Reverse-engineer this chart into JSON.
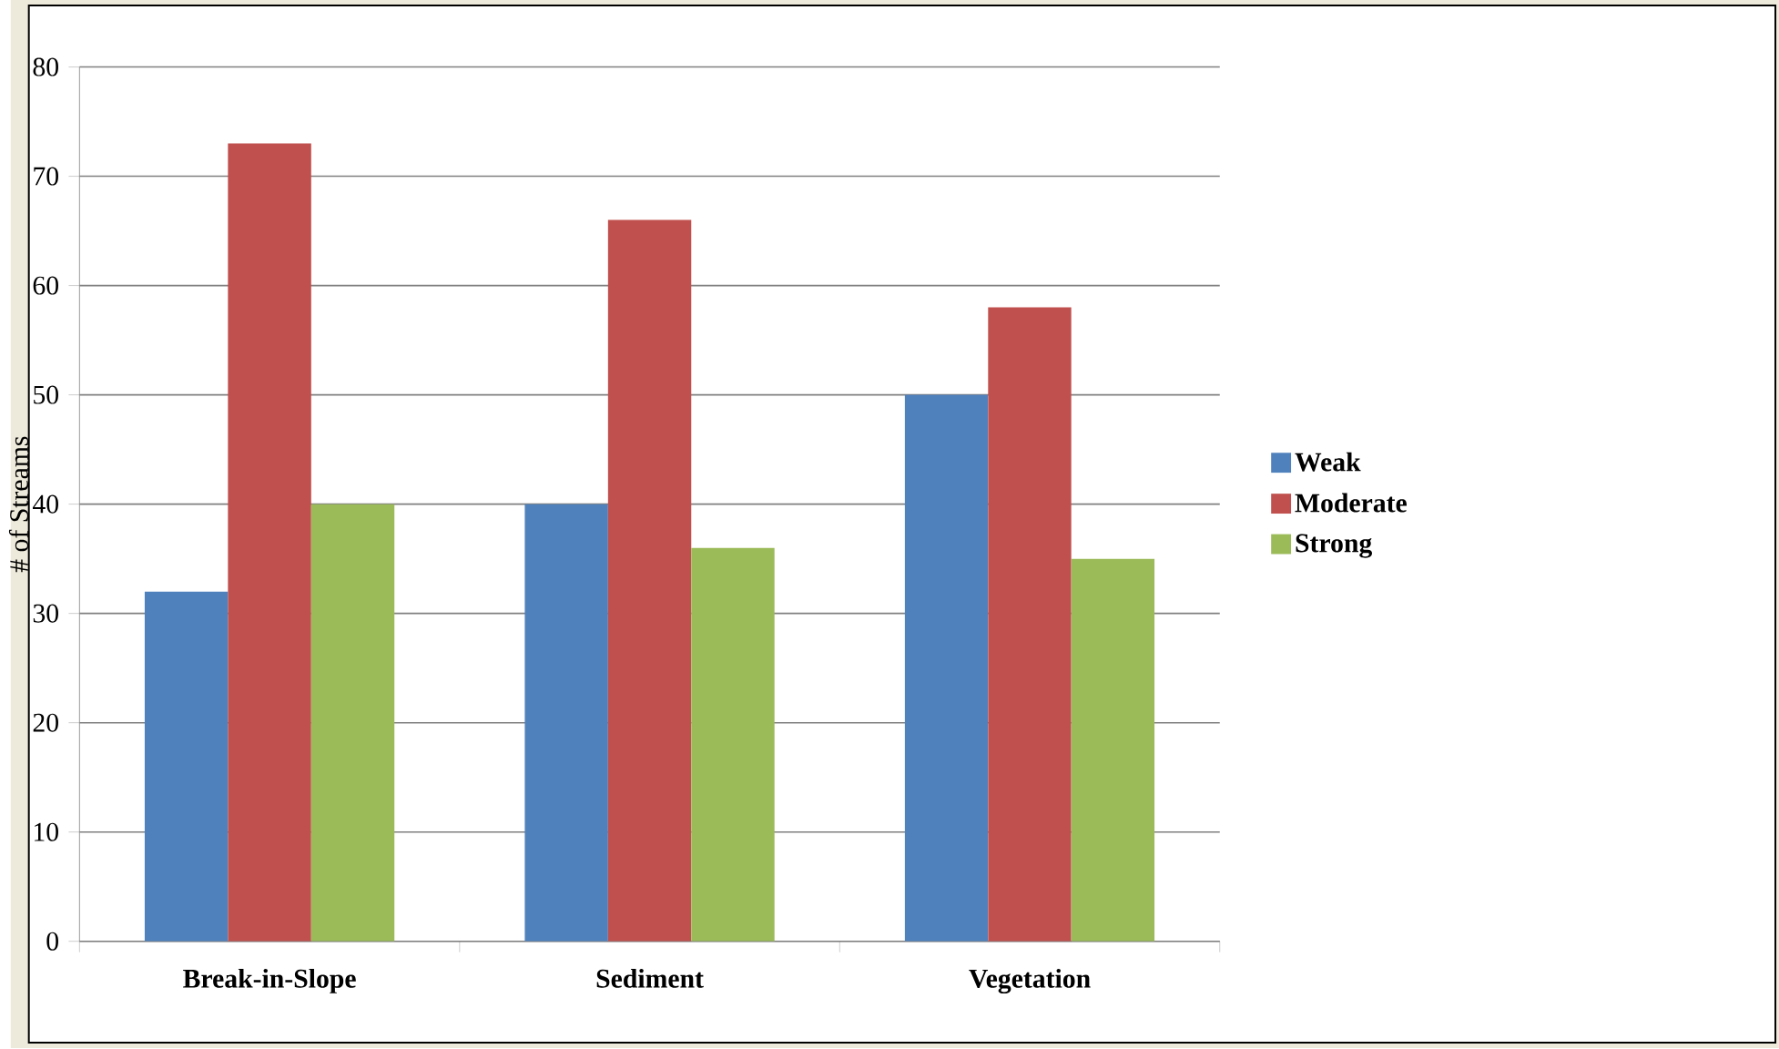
{
  "chart_data": {
    "type": "bar",
    "ylabel": "# of Streams",
    "categories": [
      "Break-in-Slope",
      "Sediment",
      "Vegetation"
    ],
    "series": [
      {
        "name": "Weak",
        "color": "#4f81bd",
        "values": [
          32,
          40,
          50
        ]
      },
      {
        "name": "Moderate",
        "color": "#c0504d",
        "values": [
          73,
          66,
          58
        ]
      },
      {
        "name": "Strong",
        "color": "#9bbb59",
        "values": [
          40,
          36,
          35
        ]
      }
    ],
    "ylim": [
      0,
      80
    ],
    "yticks": [
      0,
      10,
      20,
      30,
      40,
      50,
      60,
      70,
      80
    ],
    "grid": "y",
    "legend": "right"
  }
}
